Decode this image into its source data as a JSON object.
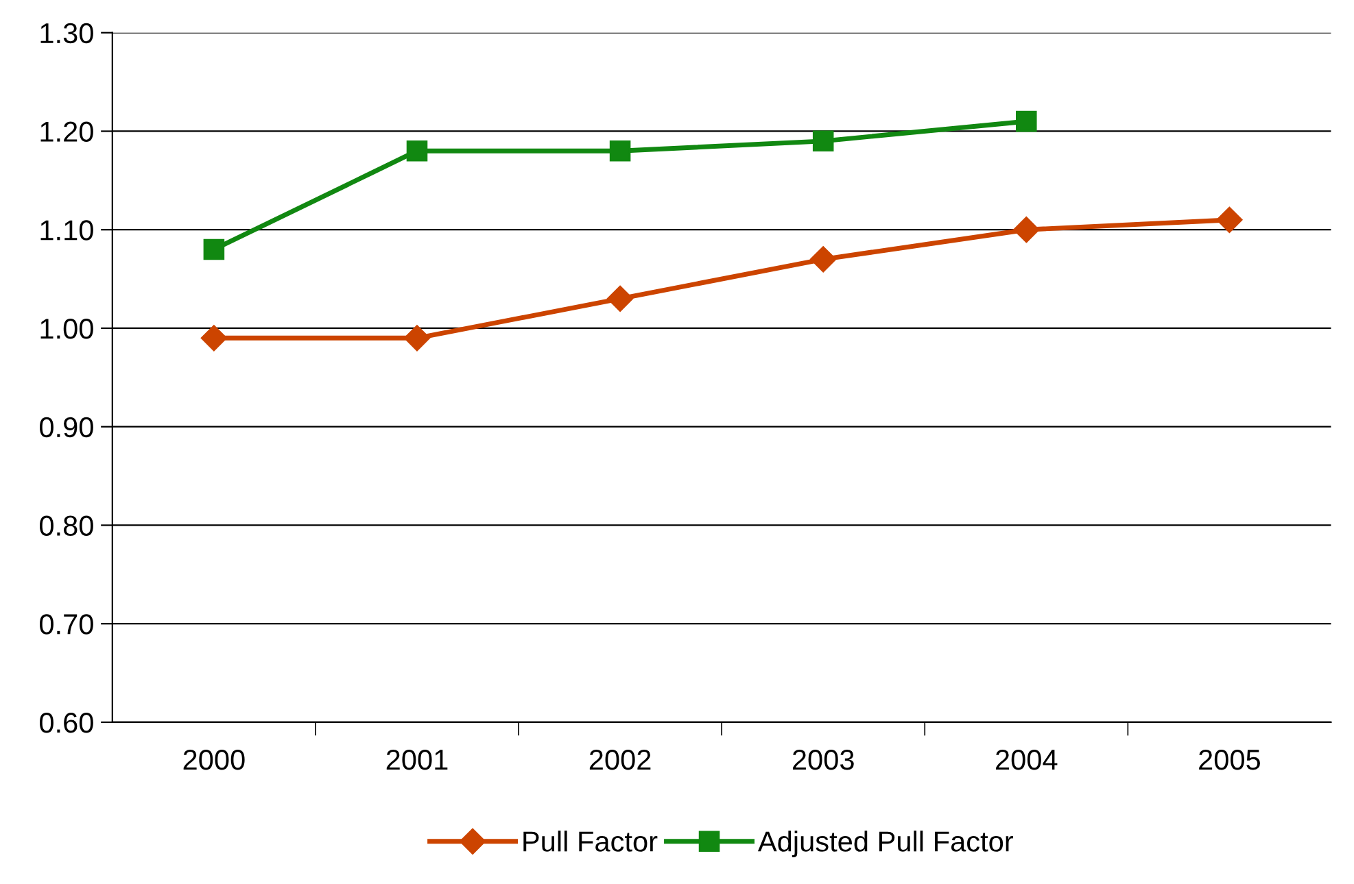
{
  "chart_data": {
    "type": "line",
    "categories": [
      "2000",
      "2001",
      "2002",
      "2003",
      "2004",
      "2005"
    ],
    "series": [
      {
        "name": "Pull Factor",
        "color": "#cc4400",
        "marker": "diamond",
        "values": [
          0.99,
          0.99,
          1.03,
          1.07,
          1.1,
          1.11
        ]
      },
      {
        "name": "Adjusted Pull Factor",
        "color": "#118811",
        "marker": "square",
        "values": [
          1.08,
          1.18,
          1.18,
          1.19,
          1.21,
          null
        ]
      }
    ],
    "ylim": [
      0.6,
      1.3
    ],
    "yticks": [
      {
        "value": 0.6,
        "label": "0.60"
      },
      {
        "value": 0.7,
        "label": "0.70"
      },
      {
        "value": 0.8,
        "label": "0.80"
      },
      {
        "value": 0.9,
        "label": "0.90"
      },
      {
        "value": 1.0,
        "label": "1.00"
      },
      {
        "value": 1.1,
        "label": "1.10"
      },
      {
        "value": 1.2,
        "label": "1.20"
      },
      {
        "value": 1.3,
        "label": "1.30"
      }
    ],
    "grid": "y",
    "legend": "bottom",
    "line_style": "solid"
  }
}
